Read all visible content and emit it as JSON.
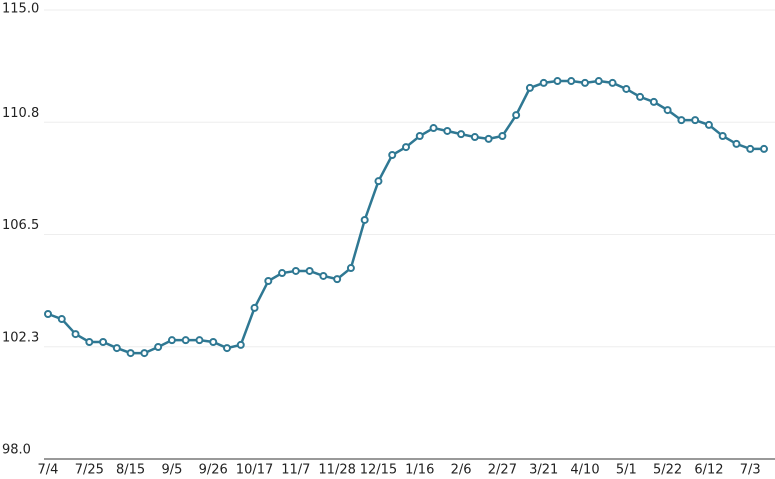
{
  "chart_data": {
    "type": "line",
    "categories": [
      "7/4",
      null,
      null,
      "7/25",
      null,
      null,
      "8/15",
      null,
      null,
      "9/5",
      null,
      null,
      "9/26",
      null,
      null,
      "10/17",
      null,
      null,
      "11/7",
      null,
      null,
      "11/28",
      null,
      null,
      "12/15",
      null,
      null,
      "1/16",
      null,
      null,
      "2/6",
      null,
      null,
      "2/27",
      null,
      null,
      "3/21",
      null,
      null,
      "4/10",
      null,
      null,
      "5/1",
      null,
      null,
      "5/22",
      null,
      null,
      "6/12",
      null,
      null,
      "7/3",
      null
    ],
    "series": [
      {
        "color": "#2f7893",
        "values": [
          103.49,
          103.3,
          102.73,
          102.43,
          102.43,
          102.2,
          102.01,
          102.01,
          102.24,
          102.5,
          102.5,
          102.5,
          102.43,
          102.2,
          102.32,
          103.72,
          104.74,
          105.04,
          105.12,
          105.12,
          104.93,
          104.81,
          105.23,
          107.05,
          108.52,
          109.51,
          109.81,
          110.23,
          110.53,
          110.42,
          110.3,
          110.19,
          110.12,
          110.23,
          111.02,
          112.05,
          112.24,
          112.31,
          112.31,
          112.24,
          112.31,
          112.24,
          112.01,
          111.71,
          111.52,
          111.21,
          110.83,
          110.83,
          110.65,
          110.23,
          109.93,
          109.74,
          109.74
        ]
      }
    ],
    "ylim": [
      98,
      115
    ],
    "yticks": [
      {
        "value": 98,
        "label": "98.0"
      },
      {
        "value": 102.25,
        "label": "102.3"
      },
      106.5,
      {
        "value": 110.75,
        "label": "110.8"
      },
      {
        "value": 115,
        "label": "115.0"
      }
    ],
    "grid": true
  }
}
